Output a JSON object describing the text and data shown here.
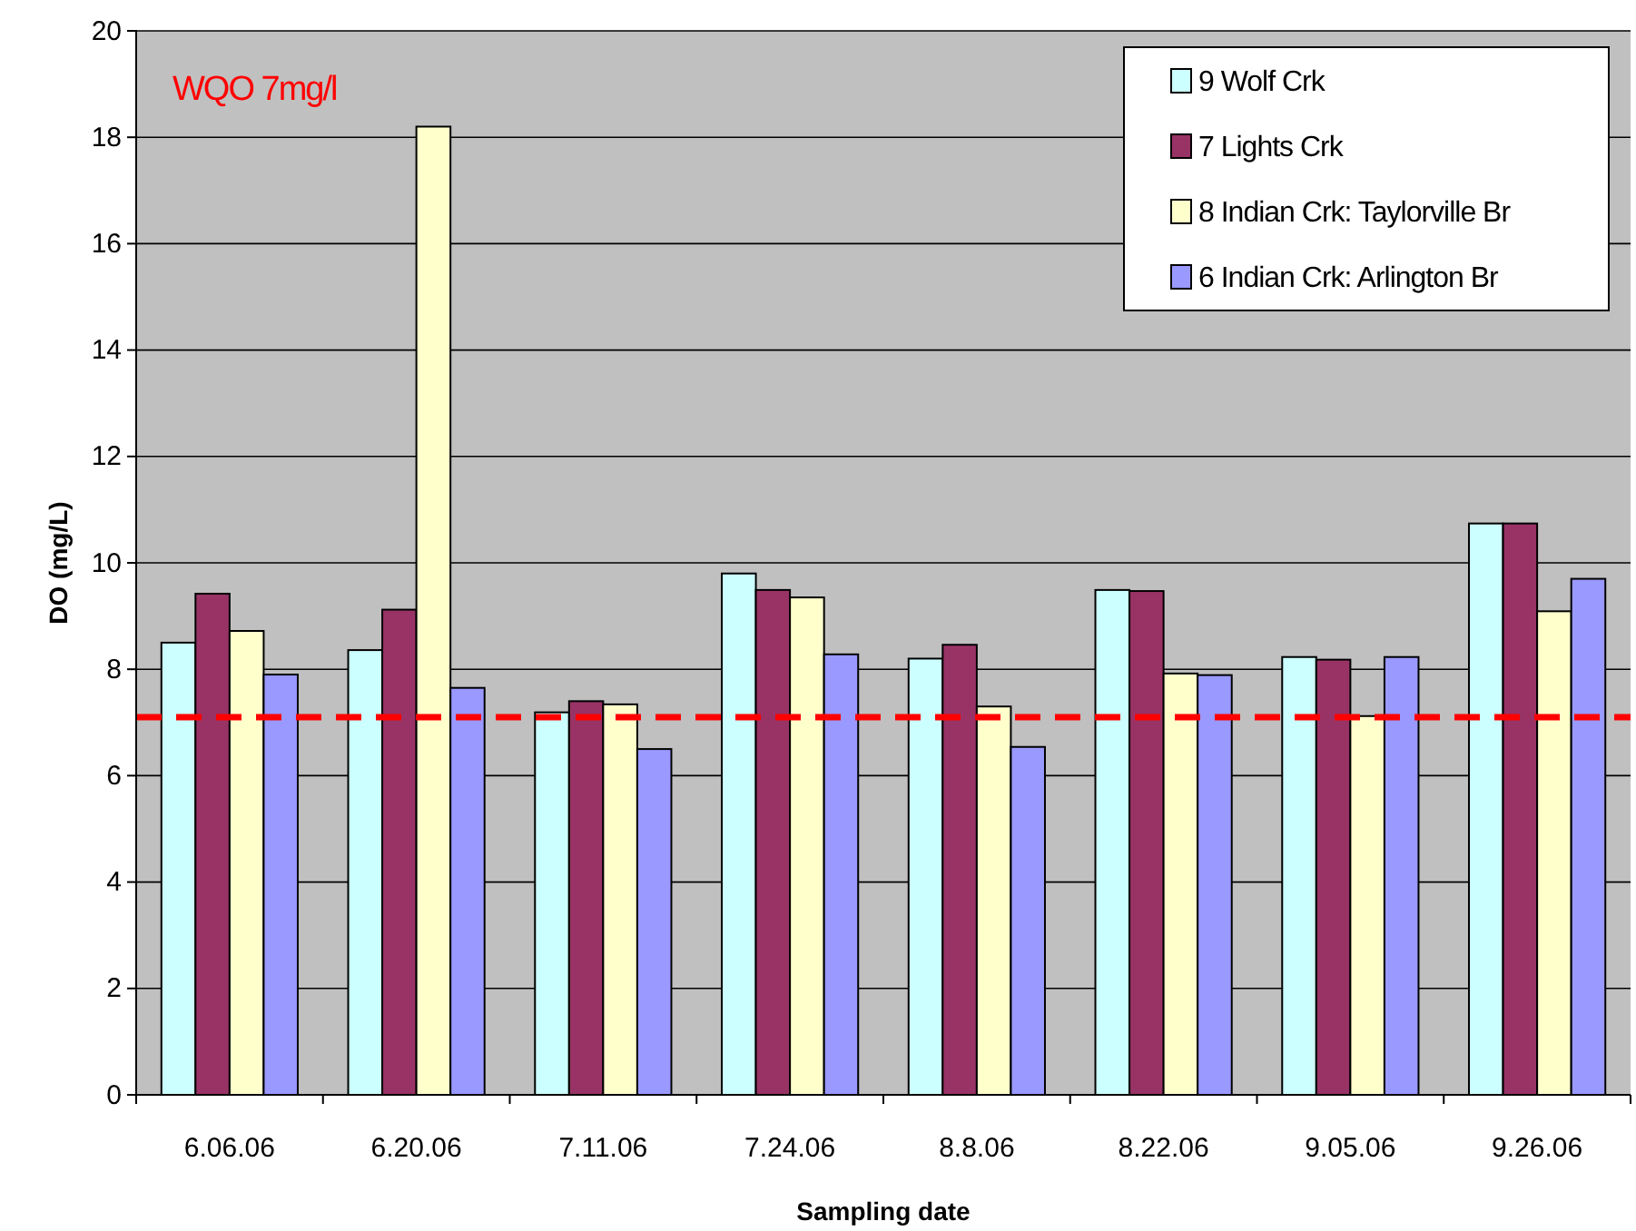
{
  "chart_data": {
    "type": "bar",
    "xlabel": "Sampling date",
    "ylabel": "DO (mg/L)",
    "categories": [
      "6.06.06",
      "6.20.06",
      "7.11.06",
      "7.24.06",
      "8.8.06",
      "8.22.06",
      "9.05.06",
      "9.26.06"
    ],
    "series": [
      {
        "name": "9 Wolf Crk",
        "color": "#ccffff",
        "values": [
          8.5,
          8.36,
          7.19,
          9.8,
          8.2,
          9.49,
          8.23,
          10.74
        ]
      },
      {
        "name": "7 Lights Crk",
        "color": "#993366",
        "values": [
          9.42,
          9.12,
          7.4,
          9.49,
          8.46,
          9.47,
          8.18,
          10.74
        ]
      },
      {
        "name": "8 Indian Crk: Taylorville Br",
        "color": "#ffffcc",
        "values": [
          8.72,
          18.2,
          7.34,
          9.35,
          7.3,
          7.92,
          7.12,
          9.09
        ]
      },
      {
        "name": "6 Indian Crk: Arlington Br",
        "color": "#9999ff",
        "values": [
          7.9,
          7.65,
          6.5,
          8.28,
          6.54,
          7.89,
          8.23,
          9.7
        ]
      }
    ],
    "ylim": [
      0,
      20
    ],
    "yticks": [
      0,
      2,
      4,
      6,
      8,
      10,
      12,
      14,
      16,
      18,
      20
    ],
    "grid": "y",
    "legend": "top right",
    "ref_lines": [
      {
        "axis": "y",
        "value": 7.1,
        "color": "#ff0000",
        "line_style": "dashed"
      }
    ],
    "annotations": [
      "WQO 7mg/l"
    ]
  }
}
